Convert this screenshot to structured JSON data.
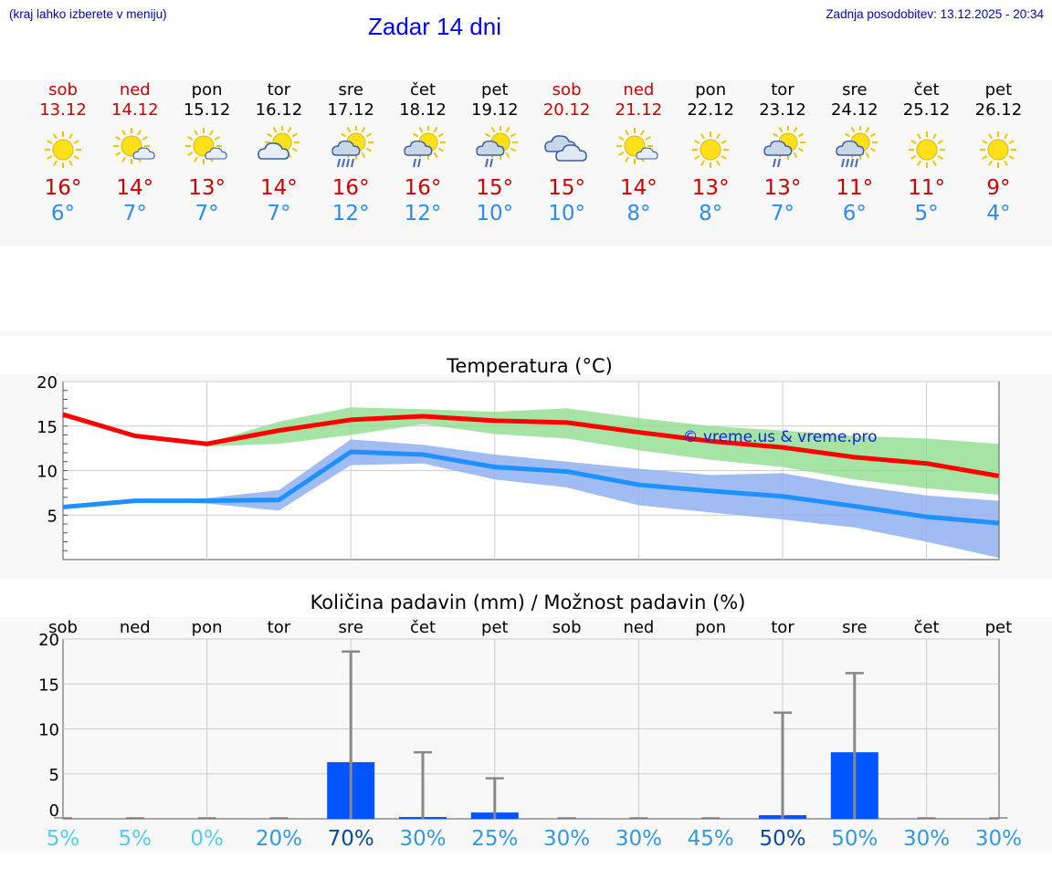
{
  "header": {
    "left_note": "(kraj lahko izberete v meniju)",
    "title": "Zadar 14 dni",
    "updated": "Zadnja posodobitev: 13.12.2025 - 20:34"
  },
  "days": [
    {
      "name": "sob",
      "date": "13.12",
      "weekend": true,
      "icon": "sun-icon",
      "tmax": "16°",
      "tmin": "6°"
    },
    {
      "name": "ned",
      "date": "14.12",
      "weekend": true,
      "icon": "sun-cloud-icon",
      "tmax": "14°",
      "tmin": "7°"
    },
    {
      "name": "pon",
      "date": "15.12",
      "weekend": false,
      "icon": "sun-cloud-icon",
      "tmax": "13°",
      "tmin": "7°"
    },
    {
      "name": "tor",
      "date": "16.12",
      "weekend": false,
      "icon": "cloud-sun-icon",
      "tmax": "14°",
      "tmin": "7°"
    },
    {
      "name": "sre",
      "date": "17.12",
      "weekend": false,
      "icon": "sun-rain-icon",
      "tmax": "16°",
      "tmin": "12°"
    },
    {
      "name": "čet",
      "date": "18.12",
      "weekend": false,
      "icon": "sun-showers-icon",
      "tmax": "16°",
      "tmin": "12°"
    },
    {
      "name": "pet",
      "date": "19.12",
      "weekend": false,
      "icon": "sun-showers-icon",
      "tmax": "15°",
      "tmin": "10°"
    },
    {
      "name": "sob",
      "date": "20.12",
      "weekend": true,
      "icon": "cloudy-icon",
      "tmax": "15°",
      "tmin": "10°"
    },
    {
      "name": "ned",
      "date": "21.12",
      "weekend": true,
      "icon": "sun-cloud-icon",
      "tmax": "14°",
      "tmin": "8°"
    },
    {
      "name": "pon",
      "date": "22.12",
      "weekend": false,
      "icon": "sun-icon",
      "tmax": "13°",
      "tmin": "8°"
    },
    {
      "name": "tor",
      "date": "23.12",
      "weekend": false,
      "icon": "sun-showers-icon",
      "tmax": "13°",
      "tmin": "7°"
    },
    {
      "name": "sre",
      "date": "24.12",
      "weekend": false,
      "icon": "sun-rain-icon",
      "tmax": "11°",
      "tmin": "6°"
    },
    {
      "name": "čet",
      "date": "25.12",
      "weekend": false,
      "icon": "sun-icon",
      "tmax": "11°",
      "tmin": "5°"
    },
    {
      "name": "pet",
      "date": "26.12",
      "weekend": false,
      "icon": "sun-icon",
      "tmax": "9°",
      "tmin": "4°"
    }
  ],
  "colors": {
    "weekend": "#cc0000",
    "weekday": "#000000",
    "tmax": "#ff0000",
    "tmin": "#1e90ff",
    "tmax_band": "#90dd90",
    "tmin_band": "#90b0f0",
    "precip_bar": "#0055ff",
    "whisker": "#888888"
  },
  "chart_data": [
    {
      "type": "line",
      "title": "Temperatura (°C)",
      "watermark": "© vreme.us & vreme.pro",
      "x": [
        0,
        1,
        2,
        3,
        4,
        5,
        6,
        7,
        8,
        9,
        10,
        11,
        12,
        13
      ],
      "ylim": [
        0,
        20
      ],
      "yticks": [
        5,
        10,
        15,
        20
      ],
      "grid": true,
      "series": [
        {
          "name": "max",
          "values": [
            16.3,
            13.9,
            13.0,
            14.5,
            15.7,
            16.1,
            15.6,
            15.4,
            14.3,
            13.3,
            12.6,
            11.5,
            10.8,
            9.4
          ]
        },
        {
          "name": "min",
          "values": [
            5.9,
            6.6,
            6.6,
            6.7,
            12.1,
            11.8,
            10.4,
            9.9,
            8.4,
            7.7,
            7.1,
            6.0,
            4.8,
            4.1
          ]
        }
      ],
      "bands": [
        {
          "name": "max-range",
          "low": [
            16.3,
            13.9,
            12.7,
            13.0,
            14.0,
            15.2,
            14.1,
            13.6,
            12.3,
            11.2,
            10.4,
            9.0,
            8.0,
            7.3
          ],
          "high": [
            16.3,
            13.9,
            13.1,
            15.5,
            17.1,
            16.9,
            16.6,
            17.0,
            15.9,
            15.0,
            14.5,
            13.9,
            13.6,
            13.0
          ]
        },
        {
          "name": "min-range",
          "low": [
            5.9,
            6.6,
            6.3,
            5.5,
            10.6,
            10.8,
            9.0,
            8.1,
            6.1,
            5.3,
            4.5,
            3.6,
            2.0,
            0.2
          ],
          "high": [
            5.9,
            6.6,
            6.9,
            7.8,
            13.5,
            12.9,
            11.8,
            11.0,
            10.2,
            9.5,
            9.7,
            8.3,
            7.2,
            6.6
          ]
        }
      ]
    },
    {
      "type": "bar",
      "title": "Količina padavin (mm) / Možnost padavin (%)",
      "categories": [
        "sob",
        "ned",
        "pon",
        "tor",
        "sre",
        "čet",
        "pet",
        "sob",
        "ned",
        "pon",
        "tor",
        "sre",
        "čet",
        "pet"
      ],
      "ylim": [
        0,
        20
      ],
      "yticks": [
        0,
        5,
        10,
        15,
        20
      ],
      "grid": true,
      "values": [
        0,
        0,
        0,
        0,
        6.3,
        0.2,
        0.7,
        0,
        0,
        0,
        0.4,
        7.4,
        0,
        0
      ],
      "max_values": [
        0,
        0,
        0,
        0,
        18.6,
        7.4,
        4.5,
        0,
        0,
        0,
        11.8,
        16.2,
        0,
        0
      ],
      "probability": [
        "5%",
        "5%",
        "0%",
        "20%",
        "70%",
        "30%",
        "25%",
        "30%",
        "30%",
        "45%",
        "50%",
        "50%",
        "30%",
        "30%"
      ],
      "probability_colors": [
        "#55ccee",
        "#55ccee",
        "#55ccee",
        "#3399dd",
        "#0b4a99",
        "#3399dd",
        "#3399dd",
        "#3399dd",
        "#3399dd",
        "#3399dd",
        "#0b4a99",
        "#3399dd",
        "#3399dd",
        "#3399dd"
      ]
    }
  ]
}
